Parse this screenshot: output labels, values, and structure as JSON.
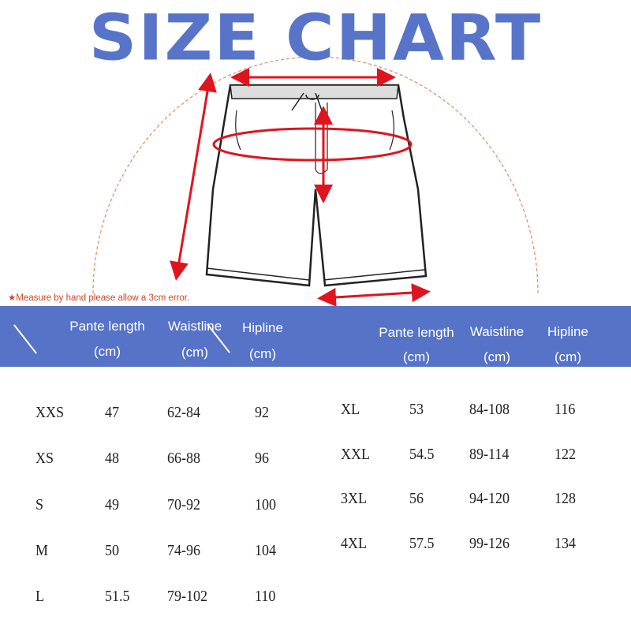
{
  "title": "SIZE CHART",
  "note": "★Measure by hand please allow a 3cm error.",
  "header": {
    "pante_length": "Pante length",
    "waistline": "Waistline",
    "hipline": "Hipline",
    "unit": "(cm)"
  },
  "colors": {
    "title": "#5874C8",
    "band": "#5673C7",
    "arrow": "#e0141e",
    "arc": "#e8906a"
  },
  "left_rows": [
    {
      "size": "XXS",
      "pante_length": "47",
      "waistline": "62-84",
      "hipline": "92"
    },
    {
      "size": "XS",
      "pante_length": "48",
      "waistline": "66-88",
      "hipline": "96"
    },
    {
      "size": "S",
      "pante_length": "49",
      "waistline": "70-92",
      "hipline": "100"
    },
    {
      "size": "M",
      "pante_length": "50",
      "waistline": "74-96",
      "hipline": "104"
    },
    {
      "size": "L",
      "pante_length": "51.5",
      "waistline": "79-102",
      "hipline": "110"
    }
  ],
  "right_rows": [
    {
      "size": "XL",
      "pante_length": "53",
      "waistline": "84-108",
      "hipline": "116"
    },
    {
      "size": "XXL",
      "pante_length": "54.5",
      "waistline": "89-114",
      "hipline": "122"
    },
    {
      "size": "3XL",
      "pante_length": "56",
      "waistline": "94-120",
      "hipline": "128"
    },
    {
      "size": "4XL",
      "pante_length": "57.5",
      "waistline": "99-126",
      "hipline": "134"
    }
  ]
}
